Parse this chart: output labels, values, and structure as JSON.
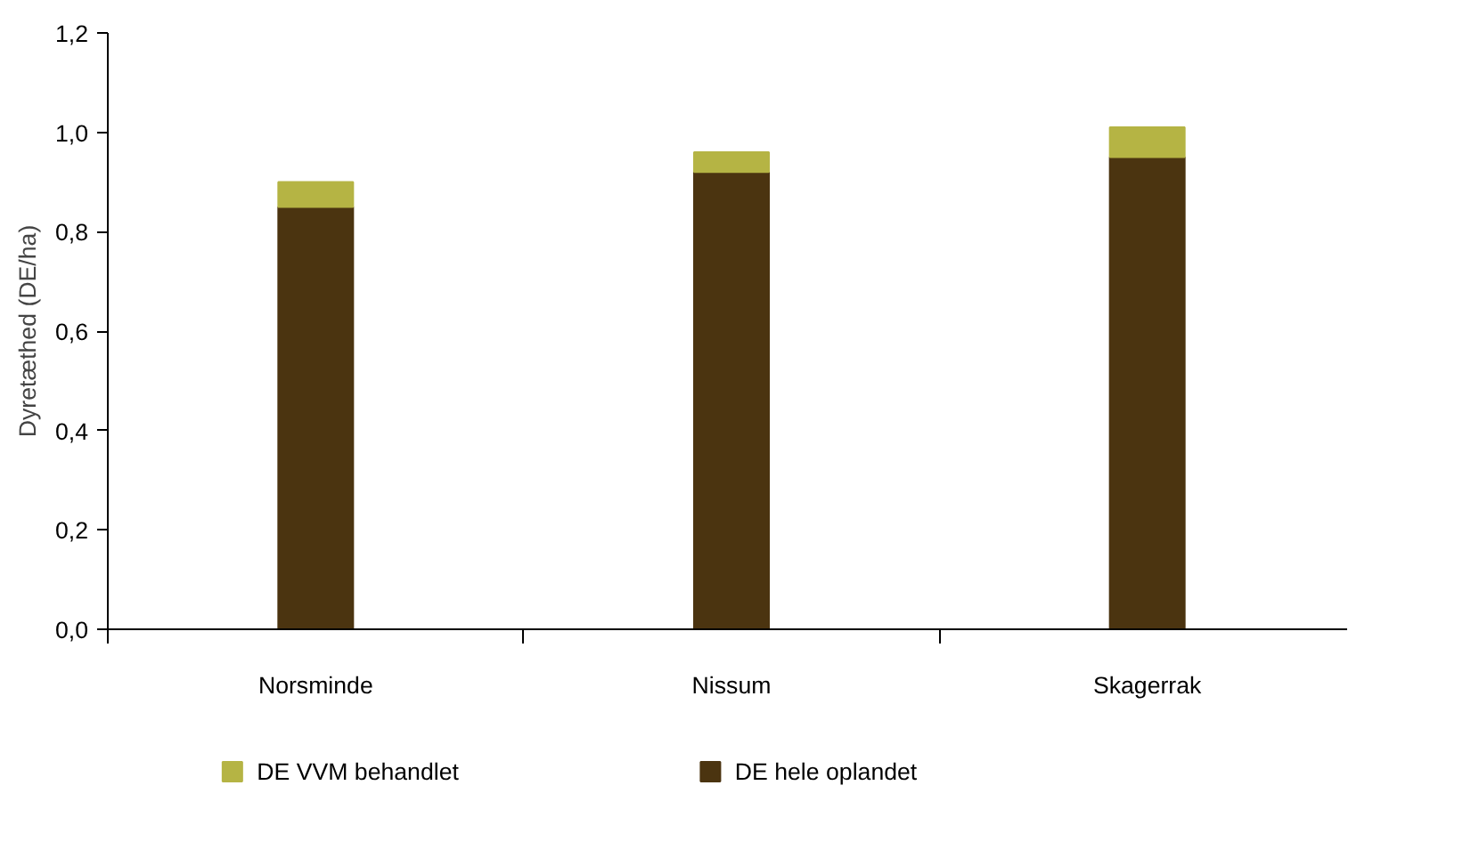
{
  "chart_data": {
    "type": "bar",
    "stacked": true,
    "ylabel": "Dyretæthed (DE/ha)",
    "categories": [
      "Norsminde",
      "Nissum",
      "Skagerrak"
    ],
    "series": [
      {
        "name": "DE hele oplandet",
        "color": "#4b3410",
        "values": [
          0.85,
          0.92,
          0.95
        ]
      },
      {
        "name": "DE VVM behandlet",
        "color": "#b5b444",
        "values": [
          0.05,
          0.04,
          0.06
        ]
      }
    ],
    "ylim": [
      0,
      1.2
    ],
    "yticks": [
      {
        "value": 0,
        "label": "0,0"
      },
      {
        "value": 0.2,
        "label": "0,2"
      },
      {
        "value": 0.4,
        "label": "0,4"
      },
      {
        "value": 0.6,
        "label": "0,6"
      },
      {
        "value": 0.8,
        "label": "0,8"
      },
      {
        "value": 1.0,
        "label": "1,0"
      },
      {
        "value": 1.2,
        "label": "1,2"
      }
    ],
    "grid": false,
    "legend": "bottom"
  }
}
